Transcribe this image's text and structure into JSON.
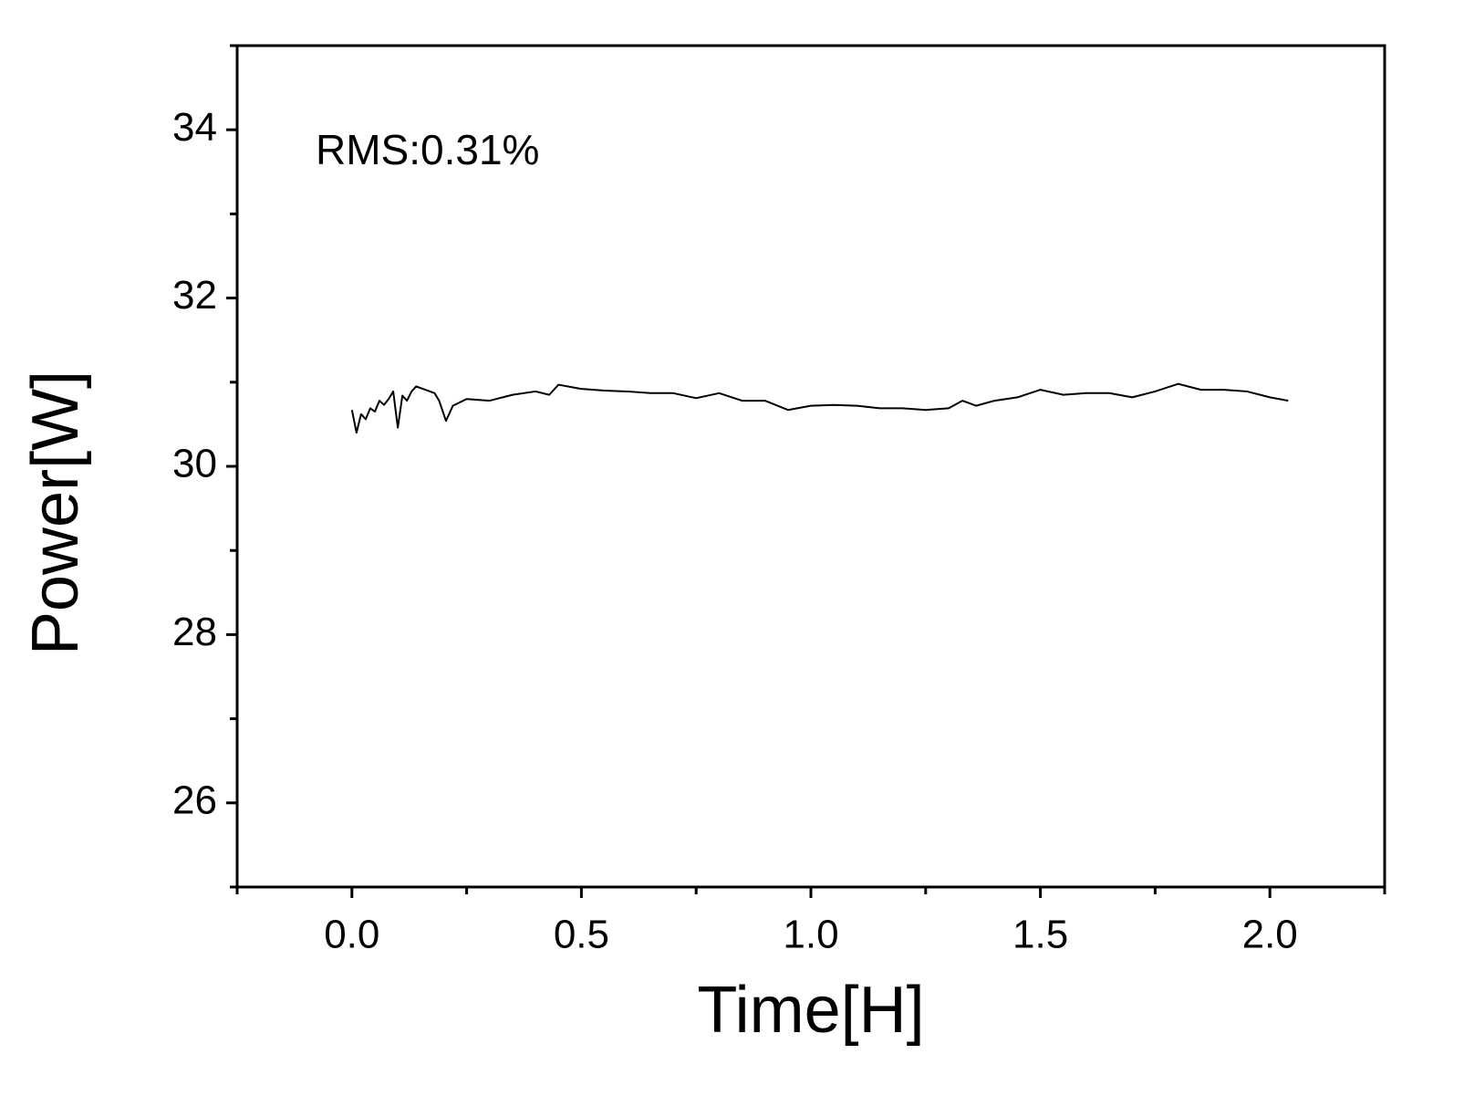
{
  "chart_data": {
    "type": "line",
    "xlabel": "Time[H]",
    "ylabel": "Power[W]",
    "annotation": "RMS:0.31%",
    "xlim": [
      -0.25,
      2.25
    ],
    "xticks": [
      {
        "value": 0,
        "label": "0.0"
      },
      0.5,
      {
        "value": 1,
        "label": "1.0"
      },
      1.5,
      {
        "value": 2,
        "label": "2.0"
      }
    ],
    "minor_xticks": [
      -0.25,
      0.25,
      0.75,
      1.25,
      1.75,
      2.25
    ],
    "ylim": [
      25,
      35
    ],
    "yticks": [
      26,
      28,
      30,
      32,
      34
    ],
    "minor_yticks": [
      25,
      27,
      29,
      31,
      33,
      35
    ],
    "grid": false,
    "series": [
      {
        "color": "#000000",
        "x": [
          0.0,
          0.01,
          0.02,
          0.03,
          0.04,
          0.05,
          0.06,
          0.07,
          0.08,
          0.09,
          0.1,
          0.11,
          0.12,
          0.13,
          0.14,
          0.16,
          0.18,
          0.19,
          0.2,
          0.205,
          0.22,
          0.25,
          0.3,
          0.35,
          0.4,
          0.43,
          0.45,
          0.5,
          0.55,
          0.6,
          0.65,
          0.7,
          0.75,
          0.8,
          0.85,
          0.9,
          0.95,
          1.0,
          1.05,
          1.1,
          1.15,
          1.2,
          1.25,
          1.3,
          1.33,
          1.36,
          1.4,
          1.45,
          1.5,
          1.55,
          1.6,
          1.65,
          1.7,
          1.75,
          1.8,
          1.85,
          1.9,
          1.95,
          2.0,
          2.04
        ],
        "values": [
          30.67,
          30.4,
          30.62,
          30.56,
          30.69,
          30.65,
          30.78,
          30.73,
          30.8,
          30.89,
          30.46,
          30.84,
          30.78,
          30.89,
          30.95,
          30.91,
          30.87,
          30.78,
          30.62,
          30.54,
          30.72,
          30.8,
          30.78,
          30.85,
          30.89,
          30.85,
          30.97,
          30.92,
          30.9,
          30.89,
          30.87,
          30.87,
          30.81,
          30.87,
          30.78,
          30.78,
          30.67,
          30.72,
          30.73,
          30.72,
          30.69,
          30.69,
          30.67,
          30.69,
          30.78,
          30.72,
          30.78,
          30.82,
          30.91,
          30.85,
          30.87,
          30.87,
          30.82,
          30.89,
          30.98,
          30.91,
          30.91,
          30.89,
          30.82,
          30.78
        ]
      }
    ]
  }
}
